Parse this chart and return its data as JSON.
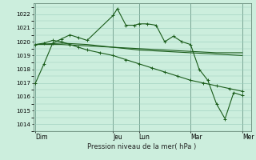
{
  "background_color": "#cceedd",
  "grid_color": "#99ccbb",
  "line_color": "#1a5c1a",
  "title": "Pression niveau de la mer( hPa )",
  "ylim": [
    1013.5,
    1022.8
  ],
  "yticks": [
    1014,
    1015,
    1016,
    1017,
    1018,
    1019,
    1020,
    1021,
    1022
  ],
  "day_labels": [
    "Dim",
    "Jeu",
    "Lun",
    "Mar",
    "Mer"
  ],
  "day_positions": [
    0,
    36,
    48,
    72,
    96
  ],
  "xlim": [
    -1,
    100
  ],
  "series1_x": [
    0,
    4,
    8,
    12,
    16,
    20,
    24,
    36,
    38,
    42,
    46,
    48,
    52,
    56,
    60,
    64,
    68,
    72,
    76,
    80,
    84,
    88,
    92,
    96
  ],
  "series1_y": [
    1017.0,
    1018.4,
    1019.9,
    1020.2,
    1020.5,
    1020.3,
    1020.1,
    1021.9,
    1022.4,
    1021.2,
    1021.2,
    1021.3,
    1021.3,
    1021.2,
    1020.0,
    1020.4,
    1020.0,
    1019.8,
    1018.0,
    1017.2,
    1015.5,
    1014.4,
    1016.3,
    1016.1
  ],
  "series2_x": [
    0,
    4,
    8,
    12,
    16,
    20,
    24,
    30,
    36,
    42,
    48,
    54,
    60,
    66,
    72,
    78,
    84,
    90,
    96
  ],
  "series2_y": [
    1019.8,
    1019.9,
    1020.1,
    1020.0,
    1019.8,
    1019.6,
    1019.4,
    1019.2,
    1019.0,
    1018.7,
    1018.4,
    1018.1,
    1017.8,
    1017.5,
    1017.2,
    1017.0,
    1016.8,
    1016.6,
    1016.4
  ],
  "series3_x": [
    0,
    12,
    24,
    36,
    48,
    60,
    72,
    84,
    96
  ],
  "series3_y": [
    1019.8,
    1019.9,
    1019.8,
    1019.6,
    1019.4,
    1019.3,
    1019.2,
    1019.1,
    1019.0
  ],
  "series4_x": [
    0,
    12,
    24,
    36,
    48,
    60,
    72,
    84,
    96
  ],
  "series4_y": [
    1019.8,
    1019.8,
    1019.7,
    1019.6,
    1019.5,
    1019.4,
    1019.3,
    1019.2,
    1019.2
  ]
}
